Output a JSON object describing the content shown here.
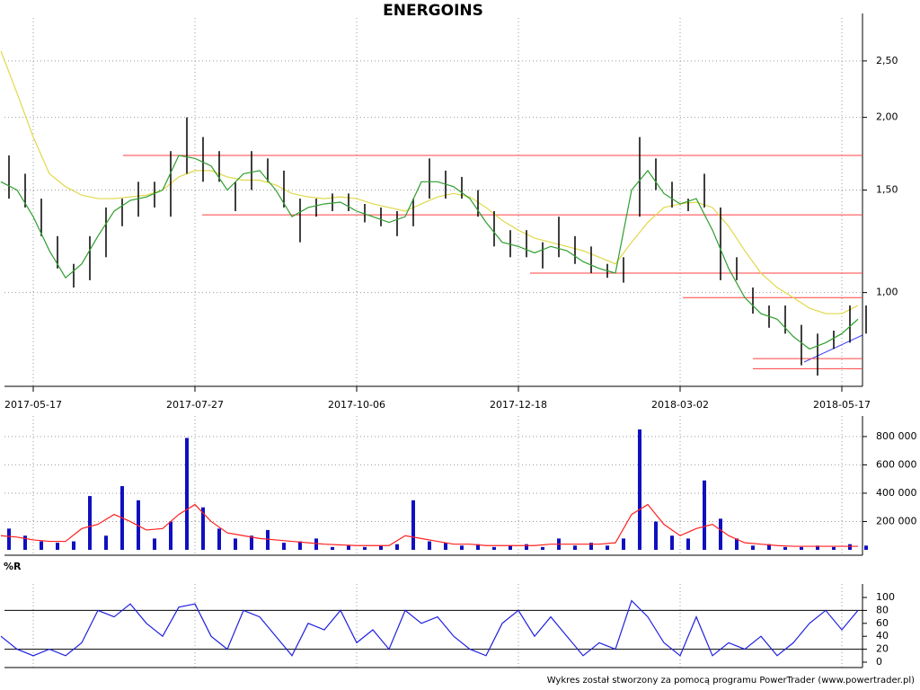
{
  "title": "ENERGOINS",
  "footer": "Wykres został stworzony za pomocą programu PowerTrader (www.powertrader.pl)",
  "chart_data": [
    {
      "type": "hilo",
      "log": true,
      "grid": true,
      "categories": [
        null,
        null,
        "2017-05-17",
        null,
        null,
        null,
        null,
        null,
        null,
        null,
        null,
        null,
        "2017-07-27",
        null,
        null,
        null,
        null,
        null,
        null,
        null,
        null,
        null,
        "2017-10-06",
        null,
        null,
        null,
        null,
        null,
        null,
        null,
        null,
        null,
        "2017-12-18",
        null,
        null,
        null,
        null,
        null,
        null,
        null,
        null,
        null,
        "2018-03-02",
        null,
        null,
        null,
        null,
        null,
        null,
        null,
        null,
        null,
        "2018-05-17",
        null
      ],
      "high": [
        1.72,
        1.6,
        1.45,
        1.25,
        1.12,
        1.25,
        1.4,
        1.45,
        1.55,
        1.55,
        1.75,
        2.0,
        1.85,
        1.75,
        1.55,
        1.75,
        1.7,
        1.62,
        1.45,
        1.45,
        1.48,
        1.48,
        1.42,
        1.4,
        1.38,
        1.45,
        1.7,
        1.62,
        1.58,
        1.5,
        1.38,
        1.28,
        1.28,
        1.22,
        1.35,
        1.25,
        1.2,
        1.12,
        1.15,
        1.85,
        1.7,
        1.55,
        1.45,
        1.6,
        1.4,
        1.15,
        1.02,
        0.95,
        0.95,
        0.88,
        0.85,
        0.86,
        0.95,
        0.95
      ],
      "low": [
        1.45,
        1.4,
        1.25,
        1.1,
        1.02,
        1.05,
        1.15,
        1.3,
        1.35,
        1.4,
        1.35,
        1.6,
        1.55,
        1.55,
        1.38,
        1.5,
        1.55,
        1.4,
        1.22,
        1.35,
        1.38,
        1.38,
        1.32,
        1.3,
        1.25,
        1.3,
        1.45,
        1.45,
        1.45,
        1.35,
        1.2,
        1.15,
        1.15,
        1.1,
        1.15,
        1.12,
        1.08,
        1.06,
        1.04,
        1.35,
        1.5,
        1.4,
        1.38,
        1.4,
        1.05,
        1.05,
        0.92,
        0.87,
        0.85,
        0.75,
        0.72,
        0.8,
        0.82,
        0.85
      ],
      "ma_short": [
        1.55,
        1.5,
        1.35,
        1.18,
        1.06,
        1.12,
        1.25,
        1.38,
        1.44,
        1.46,
        1.5,
        1.72,
        1.7,
        1.65,
        1.5,
        1.6,
        1.62,
        1.5,
        1.35,
        1.4,
        1.42,
        1.43,
        1.38,
        1.35,
        1.32,
        1.35,
        1.55,
        1.55,
        1.52,
        1.45,
        1.32,
        1.22,
        1.2,
        1.17,
        1.2,
        1.18,
        1.13,
        1.1,
        1.08,
        1.5,
        1.62,
        1.48,
        1.42,
        1.45,
        1.28,
        1.1,
        0.98,
        0.92,
        0.9,
        0.84,
        0.8,
        0.82,
        0.85,
        0.9
      ],
      "ma_long": [
        2.6,
        2.2,
        1.85,
        1.6,
        1.52,
        1.47,
        1.45,
        1.45,
        1.46,
        1.47,
        1.5,
        1.58,
        1.62,
        1.62,
        1.58,
        1.56,
        1.56,
        1.53,
        1.48,
        1.46,
        1.45,
        1.46,
        1.45,
        1.42,
        1.4,
        1.38,
        1.42,
        1.46,
        1.48,
        1.46,
        1.4,
        1.33,
        1.28,
        1.24,
        1.22,
        1.2,
        1.18,
        1.15,
        1.12,
        1.22,
        1.32,
        1.4,
        1.42,
        1.43,
        1.4,
        1.3,
        1.18,
        1.08,
        1.02,
        0.98,
        0.94,
        0.92,
        0.92,
        0.95
      ],
      "levels": [
        1.72,
        1.36,
        1.08,
        0.98,
        0.77,
        0.74
      ],
      "bar_color": "#000000",
      "ma_short_color": "#2e9e2e",
      "ma_long_color": "#e0d84a",
      "level_color": "#ff4040",
      "ylim": [
        0.69,
        2.86
      ],
      "yticks": [
        {
          "value": 1,
          "label": "1,00"
        },
        {
          "value": 1.5,
          "label": "1,50"
        },
        {
          "value": 2,
          "label": "2,00"
        },
        {
          "value": 2.5,
          "label": "2,50"
        }
      ]
    },
    {
      "type": "volume",
      "grid": true,
      "values": [
        150000,
        100000,
        60000,
        50000,
        60000,
        380000,
        100000,
        450000,
        350000,
        80000,
        200000,
        790000,
        300000,
        150000,
        80000,
        100000,
        140000,
        50000,
        60000,
        80000,
        20000,
        30000,
        20000,
        30000,
        40000,
        350000,
        60000,
        50000,
        30000,
        40000,
        20000,
        30000,
        40000,
        20000,
        80000,
        30000,
        50000,
        30000,
        80000,
        850000,
        200000,
        100000,
        80000,
        490000,
        220000,
        80000,
        30000,
        40000,
        20000,
        20000,
        30000,
        20000,
        40000,
        30000
      ],
      "ma": [
        100000,
        90000,
        70000,
        60000,
        60000,
        150000,
        180000,
        250000,
        200000,
        140000,
        150000,
        250000,
        320000,
        200000,
        120000,
        100000,
        80000,
        70000,
        60000,
        50000,
        40000,
        35000,
        30000,
        30000,
        30000,
        100000,
        80000,
        60000,
        40000,
        40000,
        30000,
        30000,
        30000,
        30000,
        40000,
        40000,
        40000,
        40000,
        50000,
        250000,
        320000,
        180000,
        100000,
        150000,
        180000,
        100000,
        50000,
        40000,
        30000,
        25000,
        25000,
        25000,
        25000,
        25000
      ],
      "color": "#1010c0",
      "ma_color": "#ff2020",
      "ylim": [
        0,
        850000
      ],
      "yticks": [
        {
          "value": 200000,
          "label": "200 000"
        },
        {
          "value": 400000,
          "label": "400 000"
        },
        {
          "value": 600000,
          "label": "600 000"
        },
        {
          "value": 800000,
          "label": "800 000"
        }
      ]
    },
    {
      "type": "line",
      "title": "%R",
      "values": [
        40,
        20,
        10,
        20,
        10,
        30,
        80,
        70,
        90,
        60,
        40,
        85,
        90,
        40,
        20,
        80,
        70,
        40,
        10,
        60,
        50,
        80,
        30,
        50,
        20,
        80,
        60,
        70,
        40,
        20,
        10,
        60,
        80,
        40,
        70,
        40,
        10,
        30,
        20,
        95,
        70,
        30,
        10,
        70,
        10,
        30,
        20,
        40,
        10,
        30,
        60,
        80,
        50,
        80
      ],
      "levels": [
        80,
        20
      ],
      "color": "#2020e0",
      "level_color": "#000000",
      "ylim": [
        0,
        100
      ],
      "yticks": [
        0,
        20,
        40,
        60,
        80,
        100
      ]
    }
  ]
}
